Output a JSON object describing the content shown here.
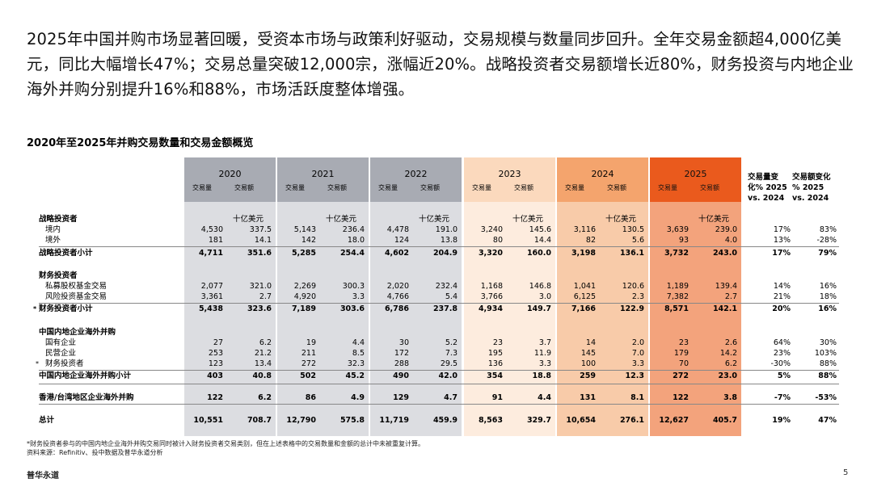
{
  "headline": "2025年中国并购市场显著回暖，受资本市场与政策利好驱动，交易规模与数量同步回升。全年交易金额超4,000亿美元，同比大幅增长47%；交易总量突破12,000宗，涨幅近20%。战略投资者交易额增长近80%，财务投资与内地企业海外并购分别提升16%和88%，市场活跃度整体增强。",
  "table_title": "2020年至2025年并购交易数量和交易金额概览",
  "years": [
    "2020",
    "2021",
    "2022",
    "2023",
    "2024",
    "2025"
  ],
  "sub_volume": "交易量",
  "sub_value": "交易额",
  "unit": "十亿美元",
  "chg_vol_header": [
    "交易量变",
    "化% 2025",
    "vs. 2024"
  ],
  "chg_val_header": [
    "交易额变化",
    "% 2025",
    "vs. 2024"
  ],
  "colors": {
    "col_2020": "#dcdde1",
    "col_2021": "#dcdde1",
    "col_2022": "#dcdde1",
    "col_2023": "#fdecde",
    "col_2024": "#f8cba9",
    "col_2025": "#f3a37c",
    "hdr_2020": "#a8abb3",
    "hdr_2021": "#a8abb3",
    "hdr_2022": "#a8abb3",
    "hdr_2023": "#fbd9bd",
    "hdr_2024": "#f4a46d",
    "hdr_2025": "#ea5a1d"
  },
  "sections": {
    "strategic": "战略投资者",
    "financial": "财务投资者",
    "outbound": "中国内地企业海外并购"
  },
  "rows": {
    "s_dom": {
      "label": "境内",
      "vals": [
        "4,530",
        "337.5",
        "5,143",
        "236.4",
        "4,478",
        "191.0",
        "3,240",
        "145.6",
        "3,116",
        "130.5",
        "3,639",
        "239.0",
        "17%",
        "83%"
      ]
    },
    "s_ovs": {
      "label": "境外",
      "vals": [
        "181",
        "14.1",
        "142",
        "18.0",
        "124",
        "13.8",
        "80",
        "14.4",
        "82",
        "5.6",
        "93",
        "4.0",
        "13%",
        "-28%"
      ]
    },
    "s_sub": {
      "label": "战略投资者小计",
      "vals": [
        "4,711",
        "351.6",
        "5,285",
        "254.4",
        "4,602",
        "204.9",
        "3,320",
        "160.0",
        "3,198",
        "136.1",
        "3,732",
        "243.0",
        "17%",
        "79%"
      ]
    },
    "f_pe": {
      "label": "私募股权基金交易",
      "vals": [
        "2,077",
        "321.0",
        "2,269",
        "300.3",
        "2,020",
        "232.4",
        "1,168",
        "146.8",
        "1,041",
        "120.6",
        "1,189",
        "139.4",
        "14%",
        "16%"
      ]
    },
    "f_vc": {
      "label": "风险投资基金交易",
      "vals": [
        "3,361",
        "2.7",
        "4,920",
        "3.3",
        "4,766",
        "5.4",
        "3,766",
        "3.0",
        "6,125",
        "2.3",
        "7,382",
        "2.7",
        "21%",
        "18%"
      ]
    },
    "f_sub": {
      "label": "财务投资者小计",
      "mark": "*",
      "vals": [
        "5,438",
        "323.6",
        "7,189",
        "303.6",
        "6,786",
        "237.8",
        "4,934",
        "149.7",
        "7,166",
        "122.9",
        "8,571",
        "142.1",
        "20%",
        "16%"
      ]
    },
    "o_soe": {
      "label": "国有企业",
      "vals": [
        "27",
        "6.2",
        "19",
        "4.4",
        "30",
        "5.2",
        "23",
        "3.7",
        "14",
        "2.0",
        "23",
        "2.6",
        "64%",
        "30%"
      ]
    },
    "o_pvt": {
      "label": "民营企业",
      "vals": [
        "253",
        "21.2",
        "211",
        "8.5",
        "172",
        "7.3",
        "195",
        "11.9",
        "145",
        "7.0",
        "179",
        "14.2",
        "23%",
        "103%"
      ]
    },
    "o_fin": {
      "label": "财务投资者",
      "mark": "*",
      "vals": [
        "123",
        "13.4",
        "272",
        "32.3",
        "288",
        "29.5",
        "136",
        "3.3",
        "100",
        "3.3",
        "70",
        "6.2",
        "-30%",
        "88%"
      ]
    },
    "o_sub": {
      "label": "中国内地企业海外并购小计",
      "vals": [
        "403",
        "40.8",
        "502",
        "45.2",
        "490",
        "42.0",
        "354",
        "18.8",
        "259",
        "12.3",
        "272",
        "23.0",
        "5%",
        "88%"
      ]
    },
    "hk": {
      "label": "香港/台湾地区企业海外并购",
      "vals": [
        "122",
        "6.2",
        "86",
        "4.9",
        "129",
        "4.7",
        "91",
        "4.4",
        "131",
        "8.1",
        "122",
        "3.8",
        "-7%",
        "-53%"
      ]
    },
    "total": {
      "label": "总计",
      "vals": [
        "10,551",
        "708.7",
        "12,790",
        "575.8",
        "11,719",
        "459.9",
        "8,563",
        "329.7",
        "10,654",
        "276.1",
        "12,627",
        "405.7",
        "19%",
        "47%"
      ]
    }
  },
  "footnote": "*财务投资者参与的中国内地企业海外并购交易同时被计入财务投资者交易类别，但在上述表格中的交易数量和金额的总计中未被重复计算。",
  "source": "资料来源：Refinitiv、投中数据及普华永道分析",
  "brand": "普华永道",
  "page_number": "5"
}
